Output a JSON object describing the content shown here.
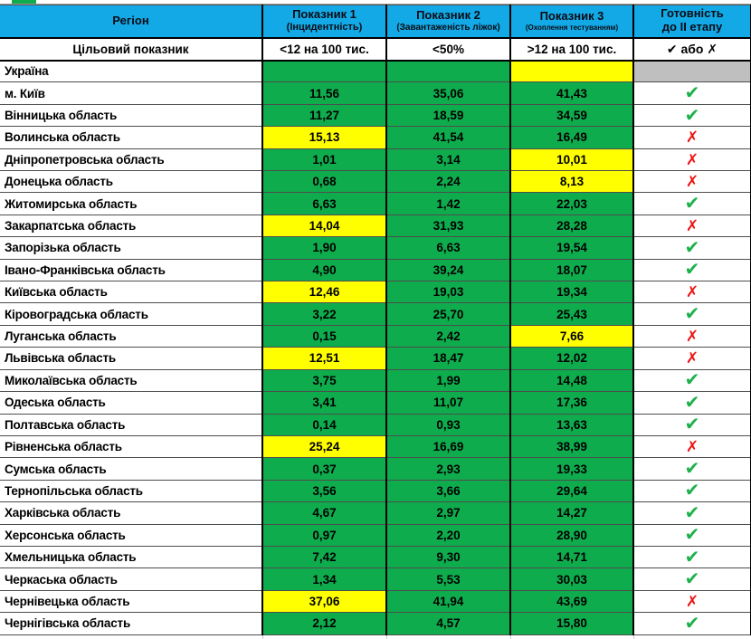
{
  "colors": {
    "header-bg": "#12A9E6",
    "pass-bg": "#0FAC4E",
    "fail-bg": "#FFFF00",
    "na-bg": "#BFBFBF",
    "check": "#1DB14B",
    "cross": "#EE1414"
  },
  "glyphs": {
    "check": "✔",
    "cross": "✗"
  },
  "header": {
    "region": "Регіон",
    "indicator1_title": "Показник 1",
    "indicator1_sub": "(Інцидентність)",
    "indicator2_title": "Показник 2",
    "indicator2_sub": "(Завантаженість ліжок)",
    "indicator3_title": "Показник 3",
    "indicator3_sub": "(Охоплення тестуванням)",
    "readiness_line1": "Готовність",
    "readiness_line2": "до II етапу"
  },
  "target_row": {
    "label": "Цільовий показник",
    "indicator1": "<12 на 100 тис.",
    "indicator2": "<50%",
    "indicator3": ">12 на 100 тис.",
    "readiness": "✔ або ✗"
  },
  "rows": [
    {
      "region": "Україна",
      "values": [
        "",
        "",
        ""
      ],
      "states": [
        "pass",
        "pass",
        "fail"
      ],
      "readiness": "none"
    },
    {
      "region": "м. Київ",
      "values": [
        "11,56",
        "35,06",
        "41,43"
      ],
      "states": [
        "pass",
        "pass",
        "pass"
      ],
      "readiness": "check"
    },
    {
      "region": "Вінницька область",
      "values": [
        "11,27",
        "18,59",
        "34,59"
      ],
      "states": [
        "pass",
        "pass",
        "pass"
      ],
      "readiness": "check"
    },
    {
      "region": "Волинська область",
      "values": [
        "15,13",
        "41,54",
        "16,49"
      ],
      "states": [
        "fail",
        "pass",
        "pass"
      ],
      "readiness": "cross"
    },
    {
      "region": "Дніпропетровська область",
      "values": [
        "1,01",
        "3,14",
        "10,01"
      ],
      "states": [
        "pass",
        "pass",
        "fail"
      ],
      "readiness": "cross"
    },
    {
      "region": "Донецька область",
      "values": [
        "0,68",
        "2,24",
        "8,13"
      ],
      "states": [
        "pass",
        "pass",
        "fail"
      ],
      "readiness": "cross"
    },
    {
      "region": "Житомирська область",
      "values": [
        "6,63",
        "1,42",
        "22,03"
      ],
      "states": [
        "pass",
        "pass",
        "pass"
      ],
      "readiness": "check"
    },
    {
      "region": "Закарпатська область",
      "values": [
        "14,04",
        "31,93",
        "28,28"
      ],
      "states": [
        "fail",
        "pass",
        "pass"
      ],
      "readiness": "cross"
    },
    {
      "region": "Запорізька область",
      "values": [
        "1,90",
        "6,63",
        "19,54"
      ],
      "states": [
        "pass",
        "pass",
        "pass"
      ],
      "readiness": "check"
    },
    {
      "region": "Івано-Франківська область",
      "values": [
        "4,90",
        "39,24",
        "18,07"
      ],
      "states": [
        "pass",
        "pass",
        "pass"
      ],
      "readiness": "check"
    },
    {
      "region": "Київська область",
      "values": [
        "12,46",
        "19,03",
        "19,34"
      ],
      "states": [
        "fail",
        "pass",
        "pass"
      ],
      "readiness": "cross"
    },
    {
      "region": "Кіровоградська область",
      "values": [
        "3,22",
        "25,70",
        "25,43"
      ],
      "states": [
        "pass",
        "pass",
        "pass"
      ],
      "readiness": "check"
    },
    {
      "region": "Луганська область",
      "values": [
        "0,15",
        "2,42",
        "7,66"
      ],
      "states": [
        "pass",
        "pass",
        "fail"
      ],
      "readiness": "cross"
    },
    {
      "region": "Львівська область",
      "values": [
        "12,51",
        "18,47",
        "12,02"
      ],
      "states": [
        "fail",
        "pass",
        "pass"
      ],
      "readiness": "cross"
    },
    {
      "region": "Миколаївська область",
      "values": [
        "3,75",
        "1,99",
        "14,48"
      ],
      "states": [
        "pass",
        "pass",
        "pass"
      ],
      "readiness": "check"
    },
    {
      "region": "Одеська область",
      "values": [
        "3,41",
        "11,07",
        "17,36"
      ],
      "states": [
        "pass",
        "pass",
        "pass"
      ],
      "readiness": "check"
    },
    {
      "region": "Полтавська область",
      "values": [
        "0,14",
        "0,93",
        "13,63"
      ],
      "states": [
        "pass",
        "pass",
        "pass"
      ],
      "readiness": "check"
    },
    {
      "region": "Рівненська область",
      "values": [
        "25,24",
        "16,69",
        "38,99"
      ],
      "states": [
        "fail",
        "pass",
        "pass"
      ],
      "readiness": "cross"
    },
    {
      "region": "Сумська область",
      "values": [
        "0,37",
        "2,93",
        "19,33"
      ],
      "states": [
        "pass",
        "pass",
        "pass"
      ],
      "readiness": "check"
    },
    {
      "region": "Тернопільська область",
      "values": [
        "3,56",
        "3,66",
        "29,64"
      ],
      "states": [
        "pass",
        "pass",
        "pass"
      ],
      "readiness": "check"
    },
    {
      "region": "Харківська область",
      "values": [
        "4,67",
        "2,97",
        "14,27"
      ],
      "states": [
        "pass",
        "pass",
        "pass"
      ],
      "readiness": "check"
    },
    {
      "region": "Херсонська область",
      "values": [
        "0,97",
        "2,20",
        "28,90"
      ],
      "states": [
        "pass",
        "pass",
        "pass"
      ],
      "readiness": "check"
    },
    {
      "region": "Хмельницька область",
      "values": [
        "7,42",
        "9,30",
        "14,71"
      ],
      "states": [
        "pass",
        "pass",
        "pass"
      ],
      "readiness": "check"
    },
    {
      "region": "Черкаська область",
      "values": [
        "1,34",
        "5,53",
        "30,03"
      ],
      "states": [
        "pass",
        "pass",
        "pass"
      ],
      "readiness": "check"
    },
    {
      "region": "Чернівецька область",
      "values": [
        "37,06",
        "41,94",
        "43,69"
      ],
      "states": [
        "fail",
        "pass",
        "pass"
      ],
      "readiness": "cross"
    },
    {
      "region": "Чернігівська область",
      "values": [
        "2,12",
        "4,57",
        "15,80"
      ],
      "states": [
        "pass",
        "pass",
        "pass"
      ],
      "readiness": "check"
    }
  ]
}
